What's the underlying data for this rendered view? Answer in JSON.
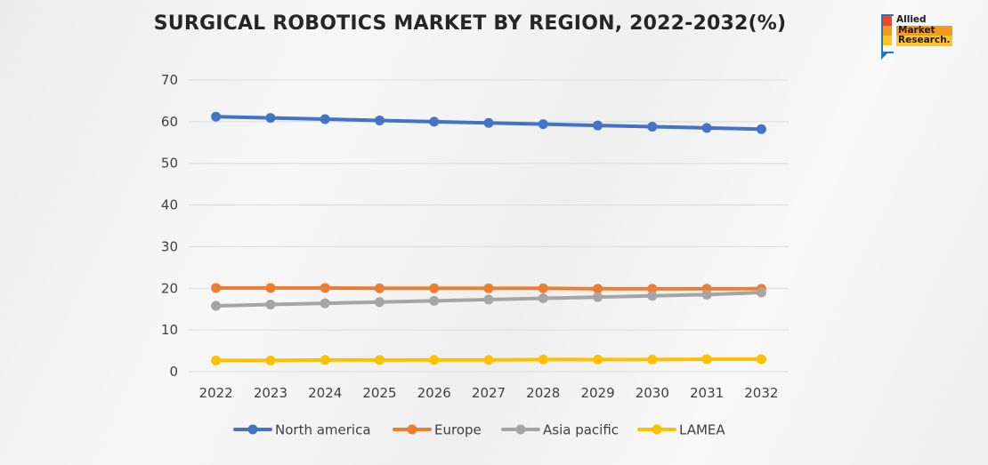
{
  "brand": {
    "logo_lines": [
      "Allied",
      "Market",
      "Research."
    ]
  },
  "chart_data": {
    "type": "line",
    "title": "SURGICAL ROBOTICS MARKET BY REGION, 2022-2032(%)",
    "xlabel": "",
    "ylabel": "",
    "x": [
      "2022",
      "2023",
      "2024",
      "2025",
      "2026",
      "2027",
      "2028",
      "2029",
      "2030",
      "2031",
      "2032"
    ],
    "ylim": [
      0,
      70
    ],
    "yticks": [
      0,
      10,
      20,
      30,
      40,
      50,
      60,
      70
    ],
    "grid": true,
    "legend_position": "bottom",
    "series": [
      {
        "name": "North america",
        "color": "#4472c4",
        "values": [
          61.2,
          60.9,
          60.6,
          60.3,
          60.0,
          59.7,
          59.4,
          59.1,
          58.8,
          58.5,
          58.2
        ]
      },
      {
        "name": "Europe",
        "color": "#ed7d31",
        "values": [
          20.1,
          20.1,
          20.1,
          20.0,
          20.0,
          20.0,
          20.0,
          19.9,
          19.9,
          19.9,
          19.9
        ]
      },
      {
        "name": "Asia pacific",
        "color": "#a5a5a5",
        "values": [
          15.8,
          16.1,
          16.4,
          16.7,
          17.0,
          17.3,
          17.6,
          17.9,
          18.2,
          18.5,
          19.0
        ]
      },
      {
        "name": "LAMEA",
        "color": "#ffc000",
        "values": [
          2.7,
          2.7,
          2.8,
          2.8,
          2.8,
          2.8,
          2.9,
          2.9,
          2.9,
          3.0,
          3.0
        ]
      }
    ]
  }
}
